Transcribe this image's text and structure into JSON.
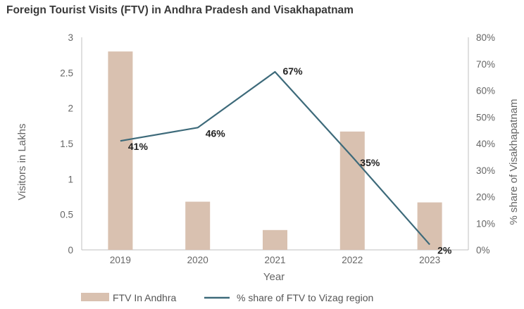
{
  "chart_data": {
    "type": "bar+line",
    "title": "Foreign Tourist Visits (FTV) in Andhra Pradesh and Visakhapatnam",
    "categories": [
      "2019",
      "2020",
      "2021",
      "2022",
      "2023"
    ],
    "xlabel": "Year",
    "ylabel_left": "Visitors in Lakhs",
    "ylabel_right": "% share of Visakhapatnam",
    "ylim_left": [
      0,
      3
    ],
    "ylim_right": [
      0,
      80
    ],
    "yticks_left": [
      "0",
      "0.5",
      "1",
      "1.5",
      "2",
      "2.5",
      "3"
    ],
    "yticks_right": [
      "0%",
      "10%",
      "20%",
      "30%",
      "40%",
      "50%",
      "60%",
      "70%",
      "80%"
    ],
    "series": [
      {
        "name": "FTV In Andhra",
        "type": "bar",
        "axis": "left",
        "color": "#d9c1b0",
        "values": [
          2.8,
          0.68,
          0.28,
          1.67,
          0.67
        ]
      },
      {
        "name": "% share of FTV to Vizag region",
        "type": "line",
        "axis": "right",
        "color": "#3d6a7a",
        "values": [
          41,
          46,
          67,
          35,
          2
        ],
        "labels": [
          "41%",
          "46%",
          "67%",
          "35%",
          "2%"
        ]
      }
    ],
    "legend_position": "bottom"
  }
}
